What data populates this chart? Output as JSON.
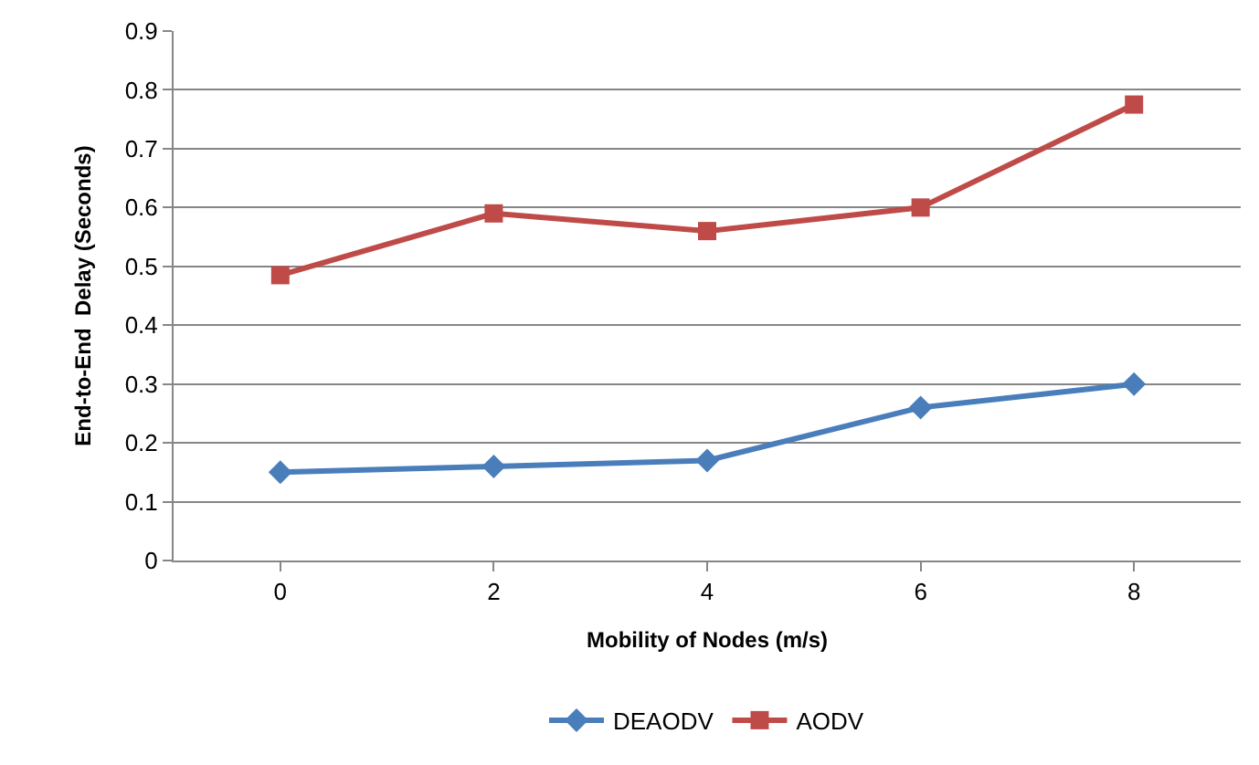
{
  "chart_data": {
    "type": "line",
    "xlabel": "Mobility of Nodes (m/s)",
    "ylabel": "End-to-End  Delay (Seconds)",
    "categories": [
      "0",
      "2",
      "4",
      "6",
      "8"
    ],
    "series": [
      {
        "name": "DEAODV",
        "color": "#4a7ebb",
        "marker": "diamond",
        "values": [
          0.15,
          0.16,
          0.17,
          0.26,
          0.3
        ]
      },
      {
        "name": "AODV",
        "color": "#be4b48",
        "marker": "square",
        "values": [
          0.485,
          0.59,
          0.56,
          0.6,
          0.775
        ]
      }
    ],
    "ylim": [
      0,
      0.9
    ],
    "yticks": [
      0,
      0.1,
      0.2,
      0.3,
      0.4,
      0.5,
      0.6,
      0.7,
      0.8,
      0.9
    ],
    "grid": "y",
    "legend": "bottom"
  }
}
